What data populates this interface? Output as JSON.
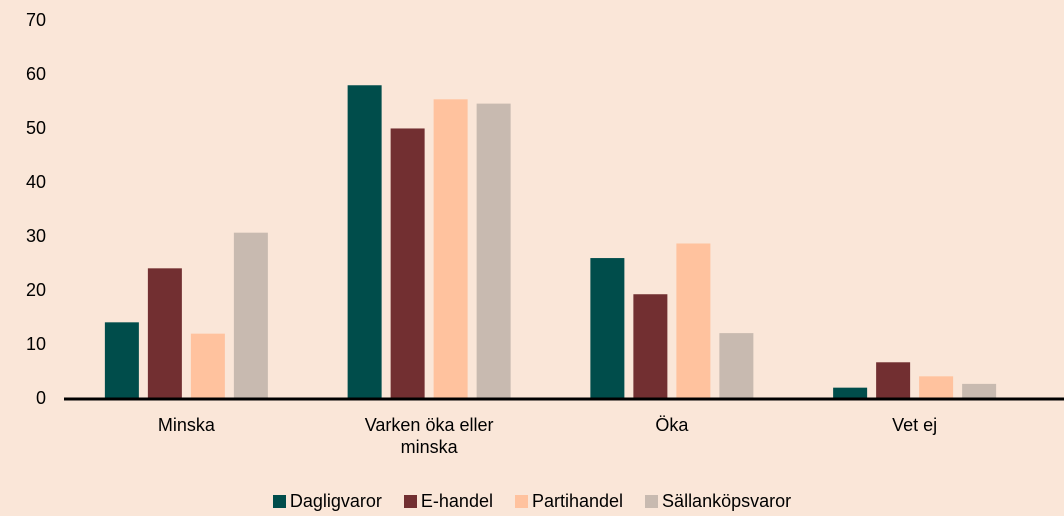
{
  "chart_data": {
    "type": "bar",
    "categories": [
      "Minska",
      "Varken öka eller minska",
      "Öka",
      "Vet ej"
    ],
    "series": [
      {
        "name": "Dagligvaror",
        "color": "#004d4b",
        "values": [
          14.2,
          58.1,
          26.1,
          2.1
        ]
      },
      {
        "name": "E-handel",
        "color": "#722f31",
        "values": [
          24.2,
          50.1,
          19.4,
          6.8
        ]
      },
      {
        "name": "Partihandel",
        "color": "#ffc29e",
        "values": [
          12.1,
          55.5,
          28.8,
          4.2
        ]
      },
      {
        "name": "Sällanköpsvaror",
        "color": "#c8bab0",
        "values": [
          30.8,
          54.7,
          12.2,
          2.8
        ]
      }
    ],
    "ylim": [
      0,
      70
    ],
    "yticks": [
      0,
      10,
      20,
      30,
      40,
      50,
      60,
      70
    ],
    "grid": false,
    "legend": "bottom"
  }
}
